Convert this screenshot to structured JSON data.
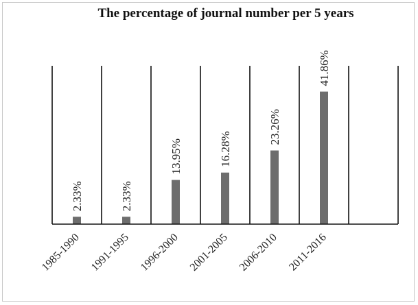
{
  "chart_data": {
    "type": "bar",
    "title": "The percentage of journal number per 5 years",
    "xlabel": "",
    "ylabel": "",
    "categories": [
      "1985-1990",
      "1991-1995",
      "1996-2000",
      "2001-2005",
      "2006-2010",
      "2011-2016",
      ""
    ],
    "values": [
      2.33,
      2.33,
      13.95,
      16.28,
      23.26,
      41.86,
      null
    ],
    "data_labels": [
      "2.33%",
      "2.33%",
      "13.95%",
      "16.28%",
      "23.26%",
      "41.86%",
      ""
    ],
    "ylim": [
      0,
      50
    ],
    "grid": "vertical category separators",
    "legend": "none",
    "bar_color": "#6d6d6d",
    "axis_color": "#111111"
  }
}
